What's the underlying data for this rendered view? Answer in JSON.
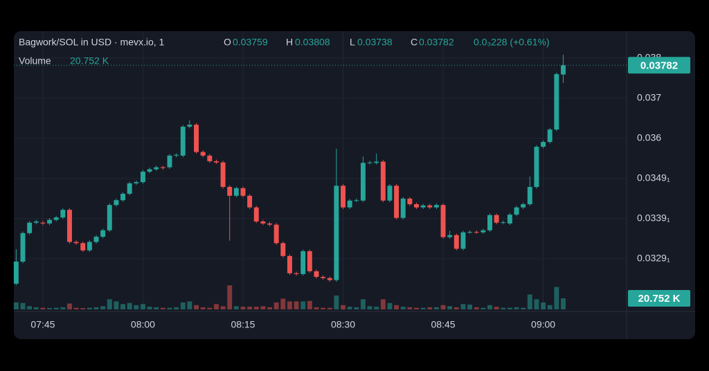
{
  "chart_data": {
    "type": "candlestick",
    "title": "Bagwork/SOL in USD · mevx.io, 1",
    "ohlc_labels": [
      "O",
      "H",
      "L",
      "C"
    ],
    "ohlc_values": [
      "0.03759",
      "0.03808",
      "0.03738",
      "0.03782"
    ],
    "change": "0.0₃228 (+0.61%)",
    "volume_label": "Volume",
    "volume_value": "20.752 K",
    "up_color": "#26a69a",
    "down_color": "#ef5350",
    "xlim": [
      460.65,
      552.5
    ],
    "xticks": [
      {
        "value": 465,
        "label": "07:45"
      },
      {
        "value": 480,
        "label": "08:00"
      },
      {
        "value": 495,
        "label": "08:15"
      },
      {
        "value": 510,
        "label": "08:30"
      },
      {
        "value": 525,
        "label": "08:45"
      },
      {
        "value": 540,
        "label": "09:00"
      }
    ],
    "ylim": [
      0.03174,
      0.03867
    ],
    "yticks": [
      0.038,
      0.037,
      0.036,
      {
        "value": 0.035,
        "label": "0.0349₁"
      },
      {
        "value": 0.034,
        "label": "0.0339₁"
      },
      {
        "value": 0.033,
        "label": "0.0329₁"
      }
    ],
    "volume_ylim": [
      0,
      521400
    ],
    "grid": true,
    "x": [
      461,
      462,
      463,
      464,
      465,
      466,
      467,
      468,
      469,
      470,
      471,
      472,
      473,
      474,
      475,
      476,
      477,
      478,
      479,
      480,
      481,
      482,
      483,
      484,
      485,
      486,
      487,
      488,
      489,
      490,
      491,
      492,
      493,
      494,
      495,
      496,
      497,
      498,
      499,
      500,
      501,
      502,
      503,
      504,
      505,
      506,
      507,
      508,
      509,
      510,
      511,
      512,
      513,
      514,
      515,
      516,
      517,
      518,
      519,
      520,
      521,
      522,
      523,
      524,
      525,
      526,
      527,
      528,
      529,
      530,
      531,
      532,
      533,
      534,
      535,
      536,
      537,
      538,
      539,
      540,
      541,
      542,
      543
    ],
    "candles": [
      [
        0.03238,
        0.03324,
        0.03234,
        0.03293
      ],
      [
        0.03293,
        0.03368,
        0.03289,
        0.03364
      ],
      [
        0.03364,
        0.03394,
        0.0336,
        0.0339
      ],
      [
        0.0339,
        0.03397,
        0.03386,
        0.03393
      ],
      [
        0.0339,
        0.03394,
        0.03384,
        0.03388
      ],
      [
        0.03388,
        0.03401,
        0.03384,
        0.03397
      ],
      [
        0.03397,
        0.03407,
        0.03393,
        0.03403
      ],
      [
        0.03403,
        0.03426,
        0.03399,
        0.03422
      ],
      [
        0.03422,
        0.03426,
        0.03338,
        0.03342
      ],
      [
        0.03342,
        0.03346,
        0.03335,
        0.03339
      ],
      [
        0.03339,
        0.03343,
        0.03317,
        0.03321
      ],
      [
        0.03321,
        0.03346,
        0.03317,
        0.03342
      ],
      [
        0.03342,
        0.03359,
        0.03338,
        0.03355
      ],
      [
        0.03355,
        0.03375,
        0.03351,
        0.03371
      ],
      [
        0.03371,
        0.03438,
        0.03367,
        0.03434
      ],
      [
        0.03434,
        0.0345,
        0.0343,
        0.03446
      ],
      [
        0.03446,
        0.03466,
        0.03442,
        0.03462
      ],
      [
        0.03462,
        0.03492,
        0.03458,
        0.03488
      ],
      [
        0.03488,
        0.03495,
        0.03484,
        0.03491
      ],
      [
        0.03491,
        0.03521,
        0.03487,
        0.03517
      ],
      [
        0.03517,
        0.03527,
        0.03513,
        0.03523
      ],
      [
        0.03523,
        0.03532,
        0.03519,
        0.03528
      ],
      [
        0.03528,
        0.03532,
        0.03522,
        0.03526
      ],
      [
        0.03528,
        0.03561,
        0.03524,
        0.03557
      ],
      [
        0.03557,
        0.03563,
        0.03553,
        0.03559
      ],
      [
        0.03557,
        0.03633,
        0.03553,
        0.03629
      ],
      [
        0.03629,
        0.03645,
        0.03625,
        0.03634
      ],
      [
        0.03634,
        0.03638,
        0.03562,
        0.03566
      ],
      [
        0.03566,
        0.0357,
        0.03553,
        0.03557
      ],
      [
        0.03557,
        0.03561,
        0.03539,
        0.03543
      ],
      [
        0.03543,
        0.03547,
        0.03536,
        0.0354
      ],
      [
        0.0354,
        0.03544,
        0.03475,
        0.03479
      ],
      [
        0.03479,
        0.03483,
        0.03345,
        0.03457
      ],
      [
        0.03457,
        0.0348,
        0.03453,
        0.03476
      ],
      [
        0.03476,
        0.0348,
        0.03453,
        0.03457
      ],
      [
        0.03457,
        0.03461,
        0.03424,
        0.03428
      ],
      [
        0.03428,
        0.03432,
        0.03389,
        0.03393
      ],
      [
        0.03393,
        0.03397,
        0.03384,
        0.03388
      ],
      [
        0.03388,
        0.03392,
        0.03381,
        0.03385
      ],
      [
        0.03385,
        0.03389,
        0.03335,
        0.03339
      ],
      [
        0.03339,
        0.03343,
        0.03303,
        0.03307
      ],
      [
        0.03307,
        0.03311,
        0.0326,
        0.03264
      ],
      [
        0.03264,
        0.03268,
        0.03258,
        0.03262
      ],
      [
        0.03262,
        0.03323,
        0.03258,
        0.03319
      ],
      [
        0.03319,
        0.03323,
        0.03265,
        0.03269
      ],
      [
        0.03269,
        0.03273,
        0.03251,
        0.03255
      ],
      [
        0.03255,
        0.03259,
        0.03248,
        0.03252
      ],
      [
        0.03252,
        0.03256,
        0.03243,
        0.03247
      ],
      [
        0.03247,
        0.03574,
        0.03243,
        0.03482
      ],
      [
        0.03482,
        0.03486,
        0.03424,
        0.03428
      ],
      [
        0.03428,
        0.03449,
        0.03424,
        0.03445
      ],
      [
        0.03445,
        0.0345,
        0.03441,
        0.03446
      ],
      [
        0.03445,
        0.03555,
        0.03441,
        0.03539
      ],
      [
        0.03539,
        0.03544,
        0.03535,
        0.0354
      ],
      [
        0.03539,
        0.03562,
        0.03535,
        0.03542
      ],
      [
        0.03542,
        0.03546,
        0.03441,
        0.03445
      ],
      [
        0.03445,
        0.03486,
        0.03441,
        0.03482
      ],
      [
        0.03482,
        0.03486,
        0.03398,
        0.03402
      ],
      [
        0.03402,
        0.03454,
        0.03398,
        0.0345
      ],
      [
        0.0345,
        0.03454,
        0.03432,
        0.03436
      ],
      [
        0.03436,
        0.0344,
        0.03424,
        0.03428
      ],
      [
        0.03428,
        0.03437,
        0.03424,
        0.03433
      ],
      [
        0.03433,
        0.03437,
        0.03424,
        0.03428
      ],
      [
        0.03428,
        0.03438,
        0.03424,
        0.03434
      ],
      [
        0.03434,
        0.03438,
        0.0335,
        0.03354
      ],
      [
        0.03354,
        0.0337,
        0.0335,
        0.03359
      ],
      [
        0.03359,
        0.03363,
        0.03321,
        0.03325
      ],
      [
        0.03325,
        0.0337,
        0.03321,
        0.03366
      ],
      [
        0.03366,
        0.03371,
        0.03362,
        0.03367
      ],
      [
        0.03367,
        0.03371,
        0.03362,
        0.03366
      ],
      [
        0.03366,
        0.03375,
        0.03362,
        0.03371
      ],
      [
        0.03371,
        0.03413,
        0.03367,
        0.03409
      ],
      [
        0.03409,
        0.03413,
        0.03386,
        0.0339
      ],
      [
        0.0339,
        0.03395,
        0.03386,
        0.03391
      ],
      [
        0.03388,
        0.03414,
        0.03384,
        0.0341
      ],
      [
        0.0341,
        0.03432,
        0.03406,
        0.03428
      ],
      [
        0.03428,
        0.0344,
        0.03424,
        0.03436
      ],
      [
        0.03436,
        0.03505,
        0.03432,
        0.03479
      ],
      [
        0.03479,
        0.03583,
        0.03475,
        0.03579
      ],
      [
        0.03579,
        0.03595,
        0.03575,
        0.03591
      ],
      [
        0.03591,
        0.03626,
        0.03587,
        0.03622
      ],
      [
        0.03622,
        0.03764,
        0.03618,
        0.0376
      ],
      [
        0.03759,
        0.03808,
        0.03738,
        0.03782
      ]
    ],
    "volume": [
      13000,
      12000,
      6000,
      4000,
      3000,
      2500,
      3000,
      4000,
      11000,
      3000,
      2500,
      3000,
      4000,
      6000,
      19000,
      15000,
      10000,
      12000,
      8000,
      10000,
      5000,
      4000,
      3000,
      3000,
      4000,
      13000,
      15000,
      8000,
      4000,
      3000,
      10000,
      6000,
      45000,
      6000,
      5000,
      5000,
      5000,
      6000,
      4000,
      13000,
      20000,
      15000,
      15000,
      15000,
      16000,
      4000,
      3000,
      3000,
      26000,
      8000,
      5000,
      4000,
      19000,
      6000,
      5000,
      19000,
      12000,
      8000,
      5000,
      4000,
      3000,
      3000,
      4000,
      4000,
      8000,
      6000,
      4000,
      10000,
      9000,
      4000,
      3000,
      8000,
      5000,
      3000,
      3000,
      4000,
      3000,
      28000,
      19000,
      13000,
      8000,
      42000,
      20752
    ]
  }
}
